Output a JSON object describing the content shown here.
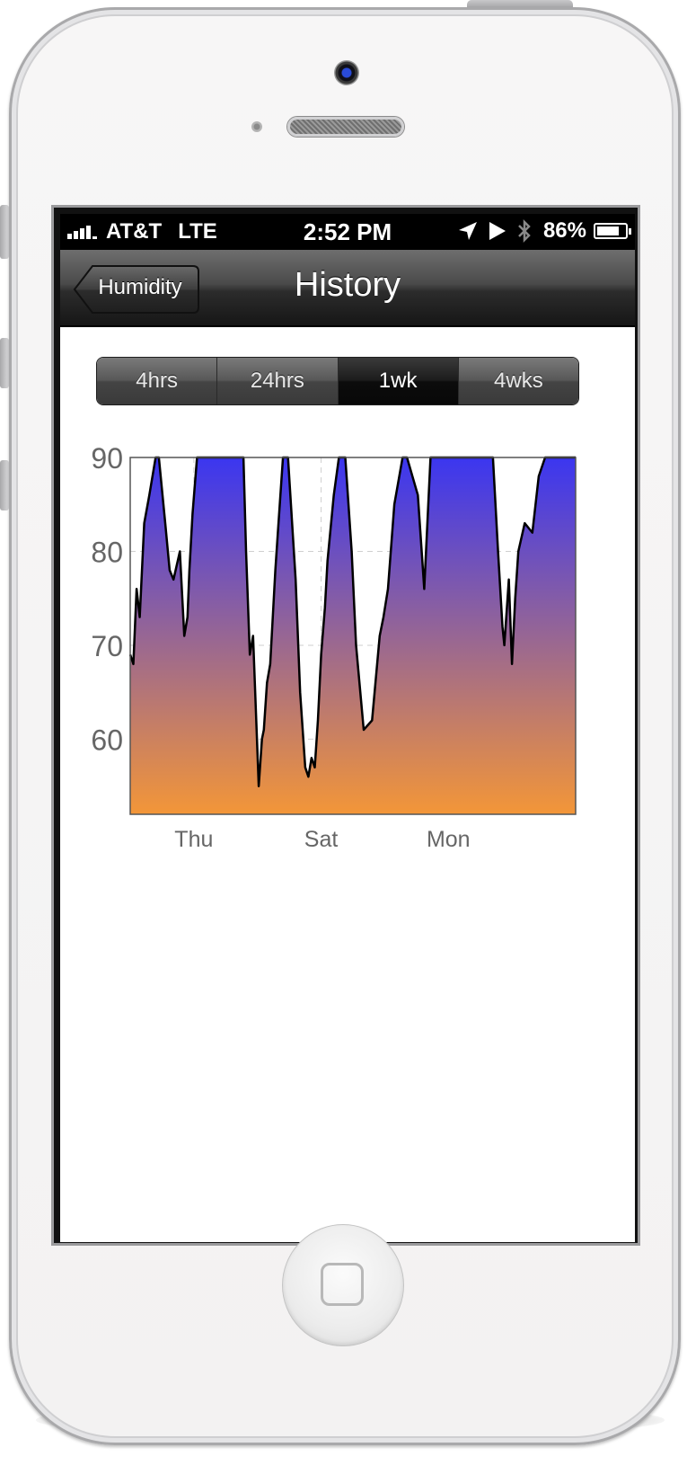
{
  "status_bar": {
    "carrier": "AT&T",
    "network": "LTE",
    "time": "2:52 PM",
    "battery": "86%",
    "battery_level": 0.86,
    "icons": [
      "signal-icon",
      "location-icon",
      "play-icon",
      "bluetooth-icon",
      "battery-icon"
    ]
  },
  "nav": {
    "back_label": "Humidity",
    "title": "History"
  },
  "segments": [
    {
      "label": "4hrs",
      "active": false
    },
    {
      "label": "24hrs",
      "active": false
    },
    {
      "label": "1wk",
      "active": true
    },
    {
      "label": "4wks",
      "active": false
    }
  ],
  "chart_data": {
    "type": "area",
    "title": "",
    "xlabel": "",
    "ylabel": "",
    "ylim": [
      52,
      90
    ],
    "yticks": [
      90,
      80,
      70,
      60
    ],
    "x_range": [
      0,
      7
    ],
    "xticks": [
      {
        "label": "Thu",
        "x": 1
      },
      {
        "label": "Sat",
        "x": 3
      },
      {
        "label": "Mon",
        "x": 5
      }
    ],
    "grid": true,
    "gradient_top": "#3b36f0",
    "gradient_bottom": "#f39638",
    "x": [
      0,
      0.05,
      0.1,
      0.15,
      0.22,
      0.3,
      0.4,
      0.45,
      0.55,
      0.62,
      0.68,
      0.78,
      0.85,
      0.9,
      0.93,
      0.98,
      1.05,
      1.12,
      1.25,
      1.3,
      1.78,
      1.82,
      1.88,
      1.93,
      2.02,
      2.07,
      2.1,
      2.15,
      2.2,
      2.28,
      2.32,
      2.4,
      2.48,
      2.6,
      2.67,
      2.75,
      2.8,
      2.85,
      2.9,
      2.95,
      3.0,
      3.06,
      3.1,
      3.2,
      3.28,
      3.38,
      3.48,
      3.55,
      3.67,
      3.8,
      3.92,
      3.98,
      4.05,
      4.15,
      4.28,
      4.35,
      4.52,
      4.62,
      4.72,
      4.8,
      4.9,
      5.0,
      5.7,
      5.78,
      5.85,
      5.88,
      5.95,
      6.0,
      6.05,
      6.1,
      6.2,
      6.32,
      6.42,
      6.52,
      7.0
    ],
    "values": [
      69,
      68,
      76,
      73,
      83,
      86,
      90,
      90,
      83,
      78,
      77,
      80,
      71,
      73,
      78,
      84,
      90,
      90,
      90,
      90,
      90,
      80,
      69,
      71,
      55,
      60,
      61,
      66,
      68,
      78,
      82,
      90,
      90,
      77,
      65,
      57,
      56,
      58,
      57,
      62,
      69,
      74,
      79,
      86,
      90,
      90,
      80,
      70,
      61,
      62,
      71,
      73,
      76,
      85,
      90,
      90,
      86,
      76,
      90,
      90,
      90,
      90,
      90,
      80,
      72,
      70,
      77,
      68,
      75,
      80,
      83,
      82,
      88,
      90,
      90
    ]
  }
}
